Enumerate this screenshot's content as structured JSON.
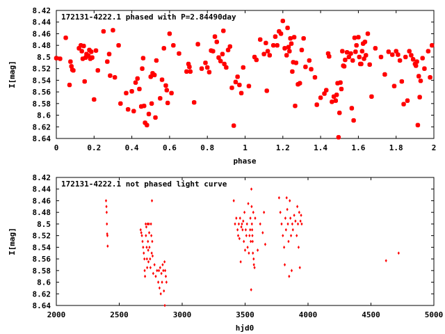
{
  "chart_data": [
    {
      "type": "scatter",
      "title": "172131-4222.1 phased with P=2.84490day",
      "xlabel": "phase",
      "ylabel": "I[mag]",
      "xlim": [
        0,
        2
      ],
      "ylim": [
        8.64,
        8.42
      ],
      "y_inverted": true,
      "grid": false,
      "marker_color": "#ff0000",
      "xticks": [
        0,
        0.2,
        0.4,
        0.6,
        0.8,
        1,
        1.2,
        1.4,
        1.6,
        1.8,
        2
      ],
      "xtick_labels": [
        "0",
        "0.2",
        "0.4",
        "0.6",
        "0.8",
        "1",
        "1.2",
        "1.4",
        "1.6",
        "1.8",
        "2"
      ],
      "yticks": [
        8.42,
        8.44,
        8.46,
        8.48,
        8.5,
        8.52,
        8.54,
        8.56,
        8.58,
        8.6,
        8.62,
        8.64
      ],
      "ytick_labels": [
        "8.42",
        "8.44",
        "8.46",
        "8.48",
        "8.5",
        "8.52",
        "8.54",
        "8.56",
        "8.58",
        "8.6",
        "8.62",
        "8.64"
      ],
      "points": [
        [
          0.0,
          8.502
        ],
        [
          0.02,
          8.503
        ],
        [
          0.05,
          8.467
        ],
        [
          0.07,
          8.548
        ],
        [
          0.075,
          8.508
        ],
        [
          0.08,
          8.516
        ],
        [
          0.085,
          8.522
        ],
        [
          0.09,
          8.523
        ],
        [
          0.12,
          8.485
        ],
        [
          0.13,
          8.48
        ],
        [
          0.135,
          8.49
        ],
        [
          0.14,
          8.503
        ],
        [
          0.145,
          8.481
        ],
        [
          0.15,
          8.542
        ],
        [
          0.155,
          8.501
        ],
        [
          0.16,
          8.495
        ],
        [
          0.17,
          8.498
        ],
        [
          0.175,
          8.488
        ],
        [
          0.18,
          8.503
        ],
        [
          0.185,
          8.491
        ],
        [
          0.19,
          8.501
        ],
        [
          0.2,
          8.573
        ],
        [
          0.21,
          8.489
        ],
        [
          0.22,
          8.523
        ],
        [
          0.25,
          8.456
        ],
        [
          0.27,
          8.508
        ],
        [
          0.28,
          8.495
        ],
        [
          0.285,
          8.532
        ],
        [
          0.3,
          8.454
        ],
        [
          0.31,
          8.535
        ],
        [
          0.33,
          8.48
        ],
        [
          0.34,
          8.58
        ],
        [
          0.37,
          8.562
        ],
        [
          0.38,
          8.59
        ],
        [
          0.4,
          8.559
        ],
        [
          0.41,
          8.593
        ],
        [
          0.42,
          8.544
        ],
        [
          0.43,
          8.537
        ],
        [
          0.44,
          8.555
        ],
        [
          0.45,
          8.585
        ],
        [
          0.455,
          8.52
        ],
        [
          0.46,
          8.502
        ],
        [
          0.465,
          8.584
        ],
        [
          0.47,
          8.613
        ],
        [
          0.48,
          8.617
        ],
        [
          0.49,
          8.598
        ],
        [
          0.5,
          8.534
        ],
        [
          0.505,
          8.58
        ],
        [
          0.51,
          8.528
        ],
        [
          0.52,
          8.531
        ],
        [
          0.525,
          8.604
        ],
        [
          0.53,
          8.506
        ],
        [
          0.55,
          8.571
        ],
        [
          0.56,
          8.539
        ],
        [
          0.57,
          8.485
        ],
        [
          0.58,
          8.549
        ],
        [
          0.585,
          8.557
        ],
        [
          0.59,
          8.579
        ],
        [
          0.6,
          8.46
        ],
        [
          0.61,
          8.562
        ],
        [
          0.62,
          8.48
        ],
        [
          0.65,
          8.494
        ],
        [
          0.69,
          8.525
        ],
        [
          0.7,
          8.512
        ],
        [
          0.705,
          8.517
        ],
        [
          0.71,
          8.525
        ],
        [
          0.73,
          8.578
        ],
        [
          0.75,
          8.478
        ],
        [
          0.77,
          8.52
        ],
        [
          0.79,
          8.51
        ],
        [
          0.8,
          8.518
        ],
        [
          0.81,
          8.526
        ],
        [
          0.82,
          8.489
        ],
        [
          0.83,
          8.49
        ],
        [
          0.84,
          8.465
        ],
        [
          0.85,
          8.474
        ],
        [
          0.86,
          8.501
        ],
        [
          0.87,
          8.507
        ],
        [
          0.88,
          8.495
        ],
        [
          0.885,
          8.455
        ],
        [
          0.89,
          8.512
        ],
        [
          0.9,
          8.518
        ],
        [
          0.91,
          8.488
        ],
        [
          0.92,
          8.482
        ],
        [
          0.93,
          8.553
        ],
        [
          0.94,
          8.618
        ],
        [
          0.95,
          8.543
        ],
        [
          0.96,
          8.534
        ],
        [
          0.97,
          8.548
        ],
        [
          0.98,
          8.562
        ],
        [
          0.99,
          8.518
        ],
        [
          1.02,
          8.55
        ],
        [
          1.05,
          8.5
        ],
        [
          1.06,
          8.505
        ],
        [
          1.08,
          8.47
        ],
        [
          1.1,
          8.495
        ],
        [
          1.11,
          8.476
        ],
        [
          1.115,
          8.558
        ],
        [
          1.12,
          8.49
        ],
        [
          1.13,
          8.497
        ],
        [
          1.15,
          8.48
        ],
        [
          1.16,
          8.465
        ],
        [
          1.17,
          8.48
        ],
        [
          1.18,
          8.456
        ],
        [
          1.19,
          8.46
        ],
        [
          1.2,
          8.438
        ],
        [
          1.21,
          8.485
        ],
        [
          1.22,
          8.497
        ],
        [
          1.225,
          8.45
        ],
        [
          1.23,
          8.483
        ],
        [
          1.235,
          8.49
        ],
        [
          1.24,
          8.468
        ],
        [
          1.245,
          8.477
        ],
        [
          1.25,
          8.525
        ],
        [
          1.255,
          8.509
        ],
        [
          1.26,
          8.466
        ],
        [
          1.265,
          8.584
        ],
        [
          1.27,
          8.51
        ],
        [
          1.28,
          8.547
        ],
        [
          1.29,
          8.545
        ],
        [
          1.3,
          8.488
        ],
        [
          1.31,
          8.468
        ],
        [
          1.32,
          8.517
        ],
        [
          1.34,
          8.506
        ],
        [
          1.35,
          8.521
        ],
        [
          1.37,
          8.535
        ],
        [
          1.38,
          8.582
        ],
        [
          1.4,
          8.57
        ],
        [
          1.42,
          8.563
        ],
        [
          1.43,
          8.557
        ],
        [
          1.44,
          8.494
        ],
        [
          1.445,
          8.499
        ],
        [
          1.46,
          8.577
        ],
        [
          1.47,
          8.568
        ],
        [
          1.48,
          8.575
        ],
        [
          1.485,
          8.565
        ],
        [
          1.49,
          8.545
        ],
        [
          1.495,
          8.638
        ],
        [
          1.5,
          8.596
        ],
        [
          1.505,
          8.544
        ],
        [
          1.51,
          8.555
        ],
        [
          1.515,
          8.49
        ],
        [
          1.52,
          8.515
        ],
        [
          1.525,
          8.516
        ],
        [
          1.53,
          8.505
        ],
        [
          1.54,
          8.492
        ],
        [
          1.55,
          8.5
        ],
        [
          1.56,
          8.494
        ],
        [
          1.565,
          8.588
        ],
        [
          1.57,
          8.506
        ],
        [
          1.575,
          8.609
        ],
        [
          1.58,
          8.467
        ],
        [
          1.585,
          8.491
        ],
        [
          1.59,
          8.48
        ],
        [
          1.6,
          8.466
        ],
        [
          1.605,
          8.5
        ],
        [
          1.61,
          8.512
        ],
        [
          1.615,
          8.512
        ],
        [
          1.62,
          8.49
        ],
        [
          1.625,
          8.477
        ],
        [
          1.63,
          8.503
        ],
        [
          1.635,
          8.474
        ],
        [
          1.64,
          8.497
        ],
        [
          1.65,
          8.46
        ],
        [
          1.66,
          8.513
        ],
        [
          1.67,
          8.568
        ],
        [
          1.69,
          8.485
        ],
        [
          1.72,
          8.5
        ],
        [
          1.74,
          8.53
        ],
        [
          1.76,
          8.491
        ],
        [
          1.78,
          8.496
        ],
        [
          1.79,
          8.55
        ],
        [
          1.8,
          8.49
        ],
        [
          1.81,
          8.496
        ],
        [
          1.82,
          8.506
        ],
        [
          1.83,
          8.542
        ],
        [
          1.84,
          8.581
        ],
        [
          1.85,
          8.5
        ],
        [
          1.86,
          8.575
        ],
        [
          1.87,
          8.49
        ],
        [
          1.88,
          8.497
        ],
        [
          1.89,
          8.504
        ],
        [
          1.9,
          8.512
        ],
        [
          1.905,
          8.515
        ],
        [
          1.91,
          8.508
        ],
        [
          1.915,
          8.617
        ],
        [
          1.92,
          8.533
        ],
        [
          1.925,
          8.569
        ],
        [
          1.93,
          8.541
        ],
        [
          1.94,
          8.502
        ],
        [
          1.95,
          8.52
        ],
        [
          1.97,
          8.49
        ],
        [
          1.98,
          8.535
        ],
        [
          1.99,
          8.48
        ]
      ]
    },
    {
      "type": "scatter",
      "title": "172131-4222.1 not phased light curve",
      "xlabel": "hjd0",
      "ylabel": "I[mag]",
      "xlim": [
        2000,
        5000
      ],
      "ylim": [
        8.64,
        8.42
      ],
      "y_inverted": true,
      "grid": false,
      "marker_color": "#ff0000",
      "xticks": [
        2000,
        2500,
        3000,
        3500,
        4000,
        4500,
        5000
      ],
      "xtick_labels": [
        "2000",
        "2500",
        "3000",
        "3500",
        "4000",
        "4500",
        "5000"
      ],
      "yticks": [
        8.42,
        8.44,
        8.46,
        8.48,
        8.5,
        8.52,
        8.54,
        8.56,
        8.58,
        8.6,
        8.62,
        8.64
      ],
      "ytick_labels": [
        "8.42",
        "8.44",
        "8.46",
        "8.48",
        "8.5",
        "8.52",
        "8.54",
        "8.56",
        "8.58",
        "8.6",
        "8.62",
        "8.64"
      ],
      "points": [
        [
          2395,
          8.46
        ],
        [
          2398,
          8.47
        ],
        [
          2400,
          8.48
        ],
        [
          2402,
          8.5
        ],
        [
          2404,
          8.517
        ],
        [
          2406,
          8.52
        ],
        [
          2408,
          8.538
        ],
        [
          2670,
          8.51
        ],
        [
          2675,
          8.515
        ],
        [
          2680,
          8.52
        ],
        [
          2685,
          8.53
        ],
        [
          2690,
          8.54
        ],
        [
          2695,
          8.55
        ],
        [
          2700,
          8.56
        ],
        [
          2702,
          8.58
        ],
        [
          2705,
          8.59
        ],
        [
          2710,
          8.5
        ],
        [
          2712,
          8.52
        ],
        [
          2715,
          8.505
        ],
        [
          2718,
          8.54
        ],
        [
          2720,
          8.56
        ],
        [
          2722,
          8.575
        ],
        [
          2725,
          8.5
        ],
        [
          2728,
          8.53
        ],
        [
          2730,
          8.545
        ],
        [
          2732,
          8.565
        ],
        [
          2735,
          8.5
        ],
        [
          2738,
          8.515
        ],
        [
          2740,
          8.54
        ],
        [
          2745,
          8.56
        ],
        [
          2748,
          8.575
        ],
        [
          2752,
          8.5
        ],
        [
          2755,
          8.52
        ],
        [
          2758,
          8.55
        ],
        [
          2760,
          8.46
        ],
        [
          2762,
          8.53
        ],
        [
          2765,
          8.555
        ],
        [
          2770,
          8.585
        ],
        [
          2780,
          8.57
        ],
        [
          2790,
          8.59
        ],
        [
          2800,
          8.58
        ],
        [
          2810,
          8.6
        ],
        [
          2815,
          8.58
        ],
        [
          2820,
          8.61
        ],
        [
          2825,
          8.575
        ],
        [
          2830,
          8.62
        ],
        [
          2835,
          8.585
        ],
        [
          2840,
          8.6
        ],
        [
          2845,
          8.57
        ],
        [
          2850,
          8.58
        ],
        [
          2855,
          8.615
        ],
        [
          2860,
          8.565
        ],
        [
          2862,
          8.64
        ],
        [
          2865,
          8.58
        ],
        [
          2870,
          8.59
        ],
        [
          2875,
          8.6
        ],
        [
          3410,
          8.46
        ],
        [
          3420,
          8.5
        ],
        [
          3430,
          8.49
        ],
        [
          3440,
          8.51
        ],
        [
          3445,
          8.52
        ],
        [
          3450,
          8.5
        ],
        [
          3455,
          8.525
        ],
        [
          3460,
          8.49
        ],
        [
          3465,
          8.565
        ],
        [
          3470,
          8.505
        ],
        [
          3475,
          8.5
        ],
        [
          3480,
          8.51
        ],
        [
          3485,
          8.495
        ],
        [
          3490,
          8.53
        ],
        [
          3495,
          8.48
        ],
        [
          3500,
          8.545
        ],
        [
          3505,
          8.51
        ],
        [
          3510,
          8.52
        ],
        [
          3515,
          8.5
        ],
        [
          3520,
          8.54
        ],
        [
          3525,
          8.465
        ],
        [
          3530,
          8.55
        ],
        [
          3535,
          8.52
        ],
        [
          3540,
          8.51
        ],
        [
          3542,
          8.49
        ],
        [
          3545,
          8.53
        ],
        [
          3548,
          8.613
        ],
        [
          3550,
          8.44
        ],
        [
          3552,
          8.47
        ],
        [
          3554,
          8.5
        ],
        [
          3556,
          8.51
        ],
        [
          3558,
          8.52
        ],
        [
          3560,
          8.53
        ],
        [
          3562,
          8.55
        ],
        [
          3565,
          8.48
        ],
        [
          3568,
          8.56
        ],
        [
          3570,
          8.57
        ],
        [
          3575,
          8.575
        ],
        [
          3580,
          8.49
        ],
        [
          3600,
          8.545
        ],
        [
          3620,
          8.5
        ],
        [
          3640,
          8.515
        ],
        [
          3650,
          8.48
        ],
        [
          3660,
          8.535
        ],
        [
          3770,
          8.455
        ],
        [
          3780,
          8.48
        ],
        [
          3790,
          8.5
        ],
        [
          3800,
          8.52
        ],
        [
          3810,
          8.54
        ],
        [
          3815,
          8.57
        ],
        [
          3820,
          8.49
        ],
        [
          3825,
          8.51
        ],
        [
          3830,
          8.455
        ],
        [
          3835,
          8.475
        ],
        [
          3840,
          8.5
        ],
        [
          3845,
          8.53
        ],
        [
          3850,
          8.59
        ],
        [
          3855,
          8.46
        ],
        [
          3860,
          8.49
        ],
        [
          3865,
          8.52
        ],
        [
          3870,
          8.58
        ],
        [
          3875,
          8.5
        ],
        [
          3880,
          8.51
        ],
        [
          3890,
          8.485
        ],
        [
          3900,
          8.495
        ],
        [
          3910,
          8.52
        ],
        [
          3915,
          8.47
        ],
        [
          3920,
          8.5
        ],
        [
          3925,
          8.54
        ],
        [
          3930,
          8.48
        ],
        [
          3935,
          8.575
        ],
        [
          3940,
          8.495
        ],
        [
          3945,
          8.485
        ],
        [
          3950,
          8.5
        ],
        [
          4620,
          8.563
        ],
        [
          4720,
          8.55
        ]
      ]
    }
  ]
}
